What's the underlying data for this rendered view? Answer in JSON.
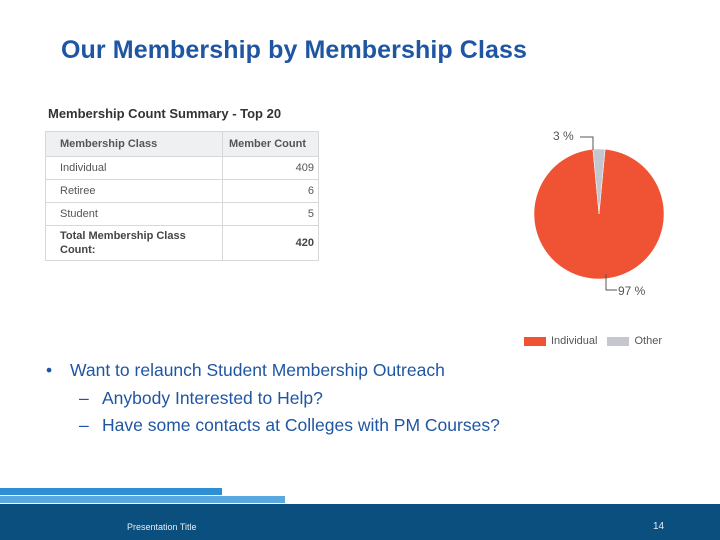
{
  "slide": {
    "title": "Our Membership by Membership Class",
    "bullet": "Want to relaunch Student Membership Outreach",
    "sub_bullets": [
      "Anybody Interested to Help?",
      "Have some contacts at Colleges with PM Courses?"
    ],
    "footer_title": "Presentation Title",
    "page_number": "14"
  },
  "table": {
    "caption": "Membership Count Summary - Top 20",
    "headers": [
      "Membership Class",
      "Member Count"
    ],
    "rows": [
      {
        "class": "Individual",
        "count": "409"
      },
      {
        "class": "Retiree",
        "count": "6"
      },
      {
        "class": "Student",
        "count": "5"
      }
    ],
    "total_label": "Total Membership Class Count:",
    "total_value": "420"
  },
  "chart_data": {
    "type": "pie",
    "slices": [
      {
        "name": "Individual",
        "value": 97,
        "label": "97 %",
        "color": "#f05234"
      },
      {
        "name": "Other",
        "value": 3,
        "label": "3 %",
        "color": "#c4c8ce"
      }
    ],
    "legend": [
      "Individual",
      "Other"
    ],
    "legend_position": "bottom-right"
  },
  "colors": {
    "title": "#1f56a3",
    "footer": "#0a4f7e",
    "stripe_light": "#2e8fd4",
    "stripe_mid": "#5aa8e0"
  }
}
